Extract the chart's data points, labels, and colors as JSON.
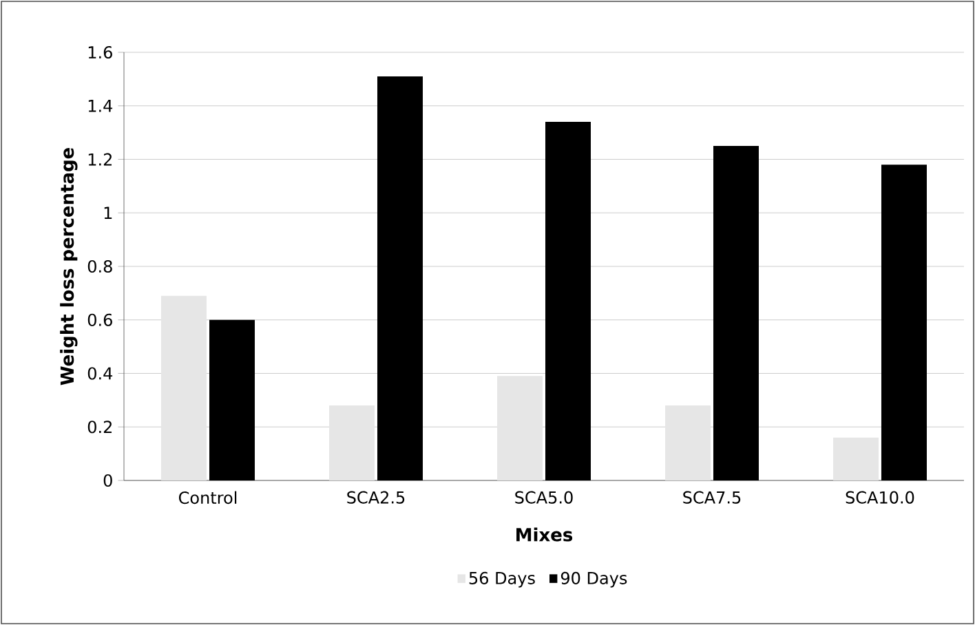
{
  "chart_data": {
    "type": "bar",
    "xlabel": "Mixes",
    "ylabel": "Weight loss percentage",
    "categories": [
      "Control",
      "SCA2.5",
      "SCA5.0",
      "SCA7.5",
      "SCA10.0"
    ],
    "series": [
      {
        "name": "56 Days",
        "color": "#e6e6e6",
        "values": [
          0.69,
          0.28,
          0.39,
          0.28,
          0.16
        ]
      },
      {
        "name": "90 Days",
        "color": "#000000",
        "values": [
          0.6,
          1.51,
          1.34,
          1.25,
          1.18
        ]
      }
    ],
    "ylim": [
      0,
      1.6
    ],
    "yticks": [
      0,
      0.2,
      0.4,
      0.6,
      0.8,
      1,
      1.2,
      1.4,
      1.6
    ],
    "grid": "y",
    "legend": "bottom"
  }
}
